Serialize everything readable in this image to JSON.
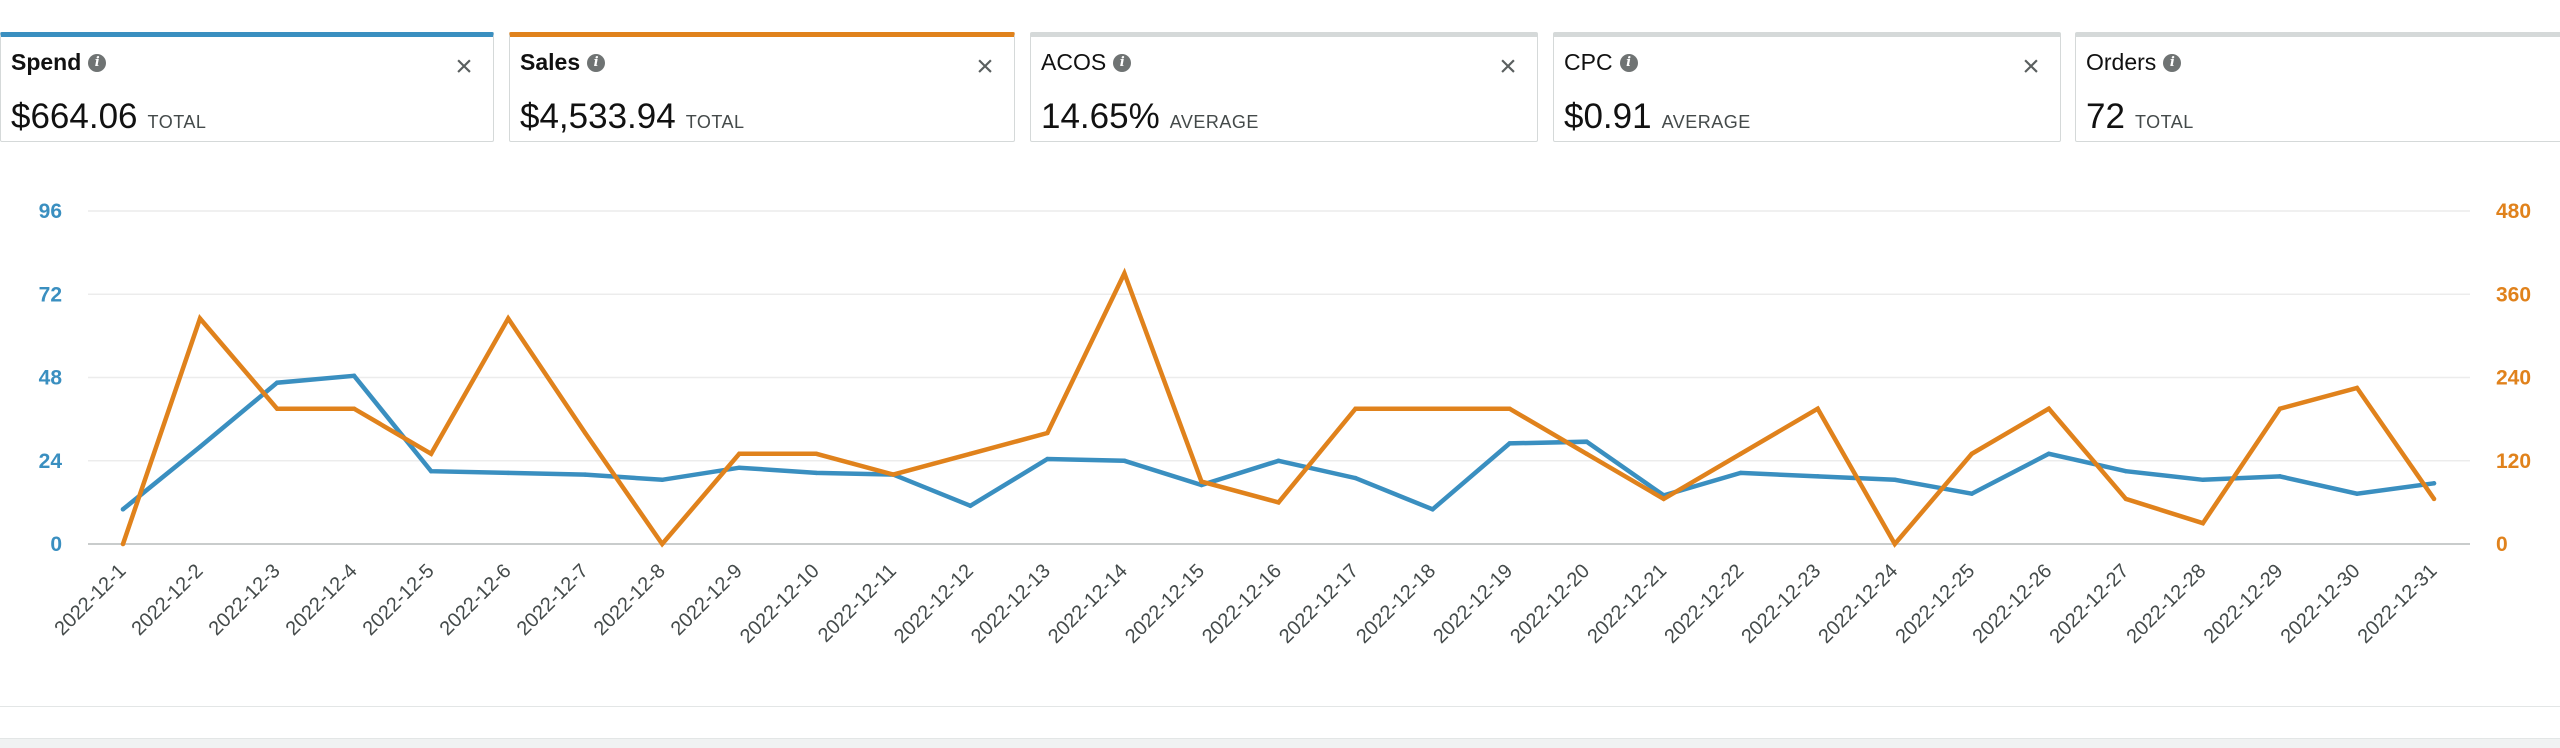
{
  "metrics": [
    {
      "name": "Spend",
      "value": "$664.06",
      "label": "TOTAL",
      "accent": "#3a8fc0",
      "selected": true
    },
    {
      "name": "Sales",
      "value": "$4,533.94",
      "label": "TOTAL",
      "accent": "#e0821c",
      "selected": true
    },
    {
      "name": "ACOS",
      "value": "14.65%",
      "label": "AVERAGE",
      "accent": "#d5d9d9",
      "selected": false
    },
    {
      "name": "CPC",
      "value": "$0.91",
      "label": "AVERAGE",
      "accent": "#d5d9d9",
      "selected": false
    },
    {
      "name": "Orders",
      "value": "72",
      "label": "TOTAL",
      "accent": "#d5d9d9",
      "selected": false
    }
  ],
  "close_symbol": "×",
  "info_symbol": "i",
  "chart_data": {
    "type": "line",
    "categories": [
      "2022-12-1",
      "2022-12-2",
      "2022-12-3",
      "2022-12-4",
      "2022-12-5",
      "2022-12-6",
      "2022-12-7",
      "2022-12-8",
      "2022-12-9",
      "2022-12-10",
      "2022-12-11",
      "2022-12-12",
      "2022-12-13",
      "2022-12-14",
      "2022-12-15",
      "2022-12-16",
      "2022-12-17",
      "2022-12-18",
      "2022-12-19",
      "2022-12-20",
      "2022-12-21",
      "2022-12-22",
      "2022-12-23",
      "2022-12-24",
      "2022-12-25",
      "2022-12-26",
      "2022-12-27",
      "2022-12-28",
      "2022-12-29",
      "2022-12-30",
      "2022-12-31"
    ],
    "series": [
      {
        "name": "Spend",
        "axis": "left",
        "color": "#3a8fc0",
        "values": [
          10,
          28,
          46.5,
          48.5,
          21,
          20.5,
          20,
          18.5,
          22,
          20.5,
          20,
          11,
          24.5,
          24,
          17,
          24,
          19,
          10,
          29,
          29.5,
          14,
          20.5,
          19.5,
          18.5,
          14.5,
          26,
          21,
          18.5,
          19.5,
          14.5,
          17.5
        ]
      },
      {
        "name": "Sales",
        "axis": "right",
        "color": "#e0821c",
        "values": [
          0,
          325,
          195,
          195,
          130,
          325,
          160,
          0,
          130,
          130,
          100,
          130,
          160,
          390,
          90,
          60,
          195,
          195,
          195,
          130,
          65,
          130,
          195,
          0,
          130,
          195,
          65,
          30,
          195,
          225,
          65
        ]
      }
    ],
    "y_left": {
      "min": 0,
      "max": 96,
      "ticks": [
        0,
        24,
        48,
        72,
        96
      ],
      "color": "#3a8fc0"
    },
    "y_right": {
      "min": 0,
      "max": 480,
      "ticks": [
        0,
        120,
        240,
        360,
        480
      ],
      "color": "#e0821c"
    },
    "grid": true
  }
}
